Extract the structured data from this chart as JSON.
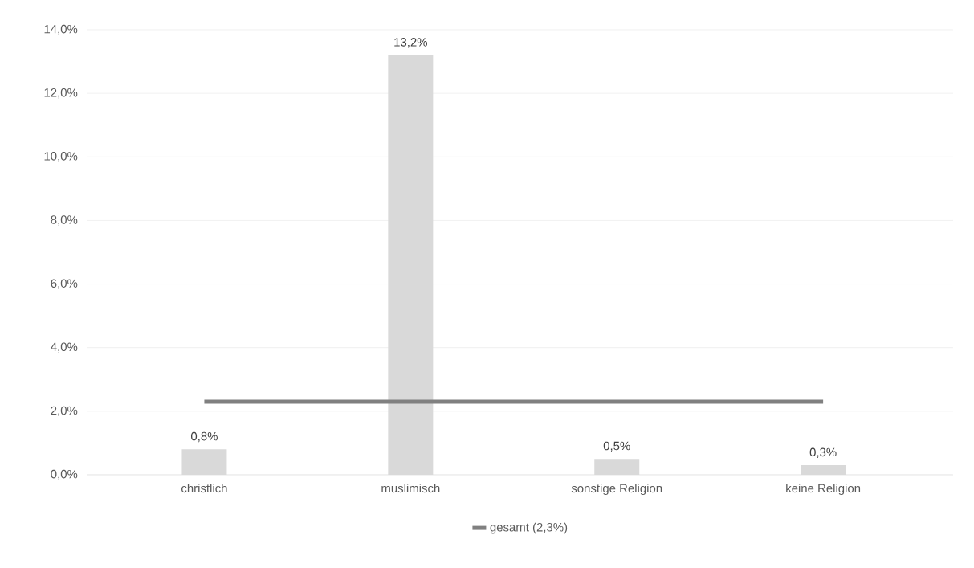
{
  "chart_data": {
    "type": "bar",
    "categories": [
      "christlich",
      "muslimisch",
      "sonstige Religion",
      "keine Religion"
    ],
    "series": [
      {
        "color": "#d9d9d9",
        "values": [
          0.8,
          13.2,
          0.5,
          0.3
        ],
        "value_labels": [
          "0,8%",
          "13,2%",
          "0,5%",
          "0,3%"
        ]
      },
      {
        "type": "line",
        "name": "gesamt (2,3%)",
        "color": "#808080",
        "values": [
          2.3,
          2.3,
          2.3,
          2.3
        ]
      }
    ],
    "ylim": [
      0,
      14
    ],
    "yticks": [
      {
        "value": 0,
        "label": "0,0%"
      },
      {
        "value": 2,
        "label": "2,0%"
      },
      {
        "value": 4,
        "label": "4,0%"
      },
      {
        "value": 6,
        "label": "6,0%"
      },
      {
        "value": 8,
        "label": "8,0%"
      },
      {
        "value": 10,
        "label": "10,0%"
      },
      {
        "value": 12,
        "label": "12,0%"
      },
      {
        "value": 14,
        "label": "14,0%"
      }
    ],
    "grid": "y",
    "legend": "bottom",
    "marker": "none"
  }
}
